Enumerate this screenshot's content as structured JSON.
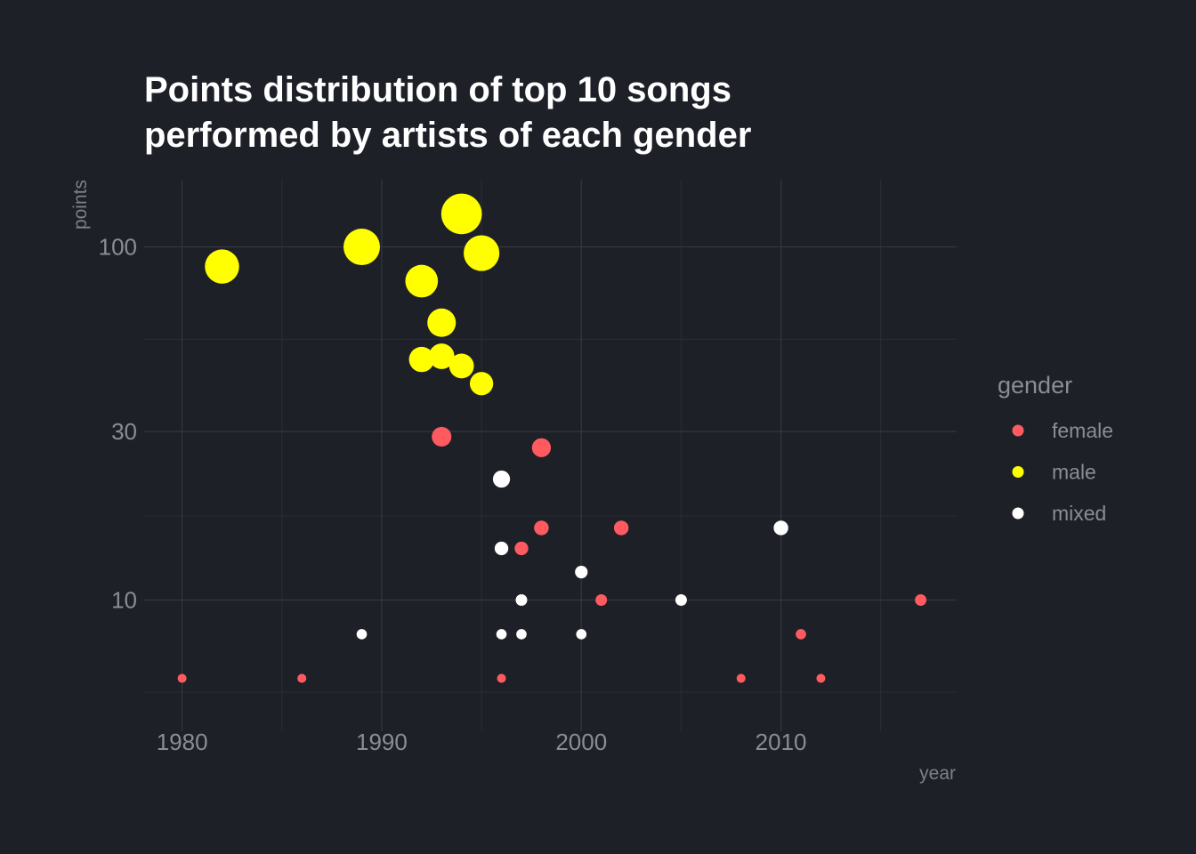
{
  "chart_data": {
    "type": "scatter",
    "title": [
      "Points distribution of top 10 songs",
      "performed by artists of each gender"
    ],
    "xlabel": "year",
    "ylabel": "points",
    "x_scale": "linear",
    "y_scale": "log",
    "xlim": [
      1978.1,
      2018.8
    ],
    "ylim": [
      4.25,
      155
    ],
    "x_ticks": [
      1980,
      1990,
      2000,
      2010
    ],
    "x_tick_labels": [
      "1980",
      "1990",
      "2000",
      "2010"
    ],
    "x_minor_ticks": [
      1985,
      1995,
      2005,
      2015
    ],
    "y_ticks": [
      10,
      30,
      100
    ],
    "y_tick_labels": [
      "10",
      "30",
      "100"
    ],
    "y_minor_ticks": [
      5.48,
      17.3,
      54.8
    ],
    "grid": true,
    "size_encodes": "points",
    "legend": {
      "title": "gender",
      "position": "right",
      "entries": [
        "female",
        "male",
        "mixed"
      ]
    },
    "colors": {
      "female": "#ff5a5f",
      "male": "#ffff00",
      "mixed": "#ffffff",
      "background": "#1e2028"
    },
    "series": [
      {
        "name": "female",
        "points": [
          {
            "x": 1980,
            "y": 6
          },
          {
            "x": 1986,
            "y": 6
          },
          {
            "x": 1996,
            "y": 6
          },
          {
            "x": 2008,
            "y": 6
          },
          {
            "x": 2012,
            "y": 6
          },
          {
            "x": 2011,
            "y": 8
          },
          {
            "x": 2001,
            "y": 10
          },
          {
            "x": 2017,
            "y": 10
          },
          {
            "x": 1997,
            "y": 14
          },
          {
            "x": 1998,
            "y": 16
          },
          {
            "x": 2002,
            "y": 16
          },
          {
            "x": 1998,
            "y": 27
          },
          {
            "x": 1993,
            "y": 29
          }
        ]
      },
      {
        "name": "male",
        "points": [
          {
            "x": 1982,
            "y": 88
          },
          {
            "x": 1989,
            "y": 100
          },
          {
            "x": 1992,
            "y": 80
          },
          {
            "x": 1992,
            "y": 48
          },
          {
            "x": 1993,
            "y": 61
          },
          {
            "x": 1993,
            "y": 49
          },
          {
            "x": 1994,
            "y": 46
          },
          {
            "x": 1994,
            "y": 124
          },
          {
            "x": 1995,
            "y": 41
          },
          {
            "x": 1995,
            "y": 96
          }
        ]
      },
      {
        "name": "mixed",
        "points": [
          {
            "x": 1989,
            "y": 8
          },
          {
            "x": 1996,
            "y": 8
          },
          {
            "x": 1997,
            "y": 8
          },
          {
            "x": 2000,
            "y": 8
          },
          {
            "x": 1997,
            "y": 10
          },
          {
            "x": 2005,
            "y": 10
          },
          {
            "x": 2000,
            "y": 12
          },
          {
            "x": 1996,
            "y": 14
          },
          {
            "x": 2010,
            "y": 16
          },
          {
            "x": 1996,
            "y": 22
          }
        ]
      }
    ]
  }
}
